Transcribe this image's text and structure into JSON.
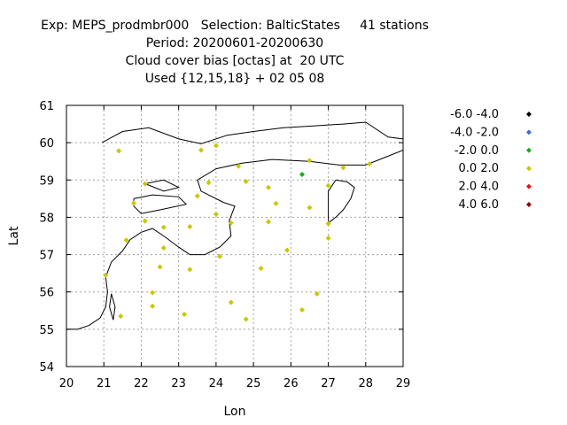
{
  "header": {
    "lines": [
      "Exp: MEPS_prodmbr000   Selection: BalticStates     41 stations",
      "Period: 20200601-20200630",
      "Cloud cover bias [octas] at  20 UTC",
      "Used {12,15,18} + 02 05 08"
    ]
  },
  "chart_data": {
    "type": "scatter",
    "xlabel": "Lon",
    "ylabel": "Lat",
    "xlim": [
      20,
      29
    ],
    "ylim": [
      54,
      61
    ],
    "xticks": [
      "20",
      "21",
      "22",
      "23",
      "24",
      "25",
      "26",
      "27",
      "28",
      "29"
    ],
    "yticks": [
      "54",
      "55",
      "56",
      "57",
      "58",
      "59",
      "60",
      "61"
    ],
    "grid": true,
    "legend_placement": "right",
    "legend": [
      {
        "label": "-6.0 -4.0",
        "color": "#000000"
      },
      {
        "label": "-4.0 -2.0",
        "color": "#3a6fd8"
      },
      {
        "label": "-2.0 0.0",
        "color": "#1aab1a"
      },
      {
        "label": "0.0 2.0",
        "color": "#c8c800"
      },
      {
        "label": "2.0 4.0",
        "color": "#ee1111"
      },
      {
        "label": "4.0 6.0",
        "color": "#8b0000"
      }
    ],
    "points": [
      {
        "lon": 21.4,
        "lat": 59.78,
        "bin": 3
      },
      {
        "lon": 23.6,
        "lat": 59.8,
        "bin": 3
      },
      {
        "lon": 24.0,
        "lat": 59.92,
        "bin": 3
      },
      {
        "lon": 24.6,
        "lat": 59.37,
        "bin": 3
      },
      {
        "lon": 26.5,
        "lat": 59.52,
        "bin": 3
      },
      {
        "lon": 27.4,
        "lat": 59.33,
        "bin": 3
      },
      {
        "lon": 28.1,
        "lat": 59.43,
        "bin": 3
      },
      {
        "lon": 26.3,
        "lat": 59.15,
        "bin": 2
      },
      {
        "lon": 22.1,
        "lat": 58.9,
        "bin": 3
      },
      {
        "lon": 23.8,
        "lat": 58.93,
        "bin": 3
      },
      {
        "lon": 24.8,
        "lat": 58.96,
        "bin": 3
      },
      {
        "lon": 25.4,
        "lat": 58.8,
        "bin": 3
      },
      {
        "lon": 27.0,
        "lat": 58.85,
        "bin": 3
      },
      {
        "lon": 21.8,
        "lat": 58.38,
        "bin": 3
      },
      {
        "lon": 23.5,
        "lat": 58.57,
        "bin": 3
      },
      {
        "lon": 25.6,
        "lat": 58.37,
        "bin": 3
      },
      {
        "lon": 26.5,
        "lat": 58.26,
        "bin": 3
      },
      {
        "lon": 22.1,
        "lat": 57.9,
        "bin": 3
      },
      {
        "lon": 24.0,
        "lat": 58.08,
        "bin": 3
      },
      {
        "lon": 24.4,
        "lat": 57.85,
        "bin": 3
      },
      {
        "lon": 25.4,
        "lat": 57.88,
        "bin": 3
      },
      {
        "lon": 27.0,
        "lat": 57.83,
        "bin": 3
      },
      {
        "lon": 21.6,
        "lat": 57.39,
        "bin": 3
      },
      {
        "lon": 22.6,
        "lat": 57.73,
        "bin": 3
      },
      {
        "lon": 23.3,
        "lat": 57.75,
        "bin": 3
      },
      {
        "lon": 27.0,
        "lat": 57.44,
        "bin": 3
      },
      {
        "lon": 22.6,
        "lat": 57.18,
        "bin": 3
      },
      {
        "lon": 24.1,
        "lat": 56.95,
        "bin": 3
      },
      {
        "lon": 25.9,
        "lat": 57.12,
        "bin": 3
      },
      {
        "lon": 22.5,
        "lat": 56.67,
        "bin": 3
      },
      {
        "lon": 23.3,
        "lat": 56.6,
        "bin": 3
      },
      {
        "lon": 25.2,
        "lat": 56.63,
        "bin": 3
      },
      {
        "lon": 21.05,
        "lat": 56.45,
        "bin": 3
      },
      {
        "lon": 22.3,
        "lat": 55.98,
        "bin": 3
      },
      {
        "lon": 26.7,
        "lat": 55.95,
        "bin": 3
      },
      {
        "lon": 22.3,
        "lat": 55.62,
        "bin": 3
      },
      {
        "lon": 24.4,
        "lat": 55.72,
        "bin": 3
      },
      {
        "lon": 26.3,
        "lat": 55.52,
        "bin": 3
      },
      {
        "lon": 21.45,
        "lat": 55.35,
        "bin": 3
      },
      {
        "lon": 23.15,
        "lat": 55.4,
        "bin": 3
      },
      {
        "lon": 24.8,
        "lat": 55.27,
        "bin": 3
      }
    ],
    "coastlines": [
      [
        [
          20.0,
          55.0
        ],
        [
          20.3,
          55.0
        ],
        [
          20.6,
          55.1
        ],
        [
          20.9,
          55.3
        ],
        [
          21.05,
          55.6
        ],
        [
          21.1,
          56.0
        ],
        [
          21.05,
          56.4
        ],
        [
          21.2,
          56.8
        ],
        [
          21.5,
          57.1
        ],
        [
          21.7,
          57.4
        ],
        [
          22.0,
          57.6
        ],
        [
          22.3,
          57.7
        ],
        [
          22.6,
          57.5
        ],
        [
          23.0,
          57.2
        ],
        [
          23.3,
          57.0
        ],
        [
          23.7,
          57.0
        ],
        [
          24.1,
          57.2
        ],
        [
          24.4,
          57.5
        ],
        [
          24.35,
          57.9
        ],
        [
          24.5,
          58.3
        ],
        [
          24.2,
          58.4
        ],
        [
          23.6,
          58.7
        ],
        [
          23.5,
          59.0
        ],
        [
          24.0,
          59.3
        ],
        [
          24.7,
          59.45
        ],
        [
          25.5,
          59.55
        ],
        [
          26.5,
          59.5
        ],
        [
          27.3,
          59.4
        ],
        [
          28.0,
          59.4
        ],
        [
          28.5,
          59.6
        ],
        [
          29.0,
          59.8
        ]
      ],
      [
        [
          27.2,
          59.0
        ],
        [
          27.5,
          58.95
        ],
        [
          27.7,
          58.8
        ],
        [
          27.6,
          58.5
        ],
        [
          27.4,
          58.2
        ],
        [
          27.2,
          58.0
        ],
        [
          27.0,
          57.85
        ],
        [
          27.0,
          58.3
        ],
        [
          27.0,
          58.7
        ],
        [
          27.2,
          59.0
        ]
      ],
      [
        [
          22.1,
          58.9
        ],
        [
          22.6,
          59.0
        ],
        [
          23.0,
          58.8
        ],
        [
          22.6,
          58.7
        ],
        [
          22.1,
          58.9
        ]
      ],
      [
        [
          21.8,
          58.5
        ],
        [
          22.3,
          58.6
        ],
        [
          23.0,
          58.55
        ],
        [
          23.2,
          58.35
        ],
        [
          22.5,
          58.2
        ],
        [
          22.0,
          58.1
        ],
        [
          21.8,
          58.3
        ],
        [
          21.8,
          58.5
        ]
      ],
      [
        [
          21.2,
          55.95
        ],
        [
          21.3,
          55.6
        ],
        [
          21.25,
          55.25
        ],
        [
          21.15,
          55.6
        ],
        [
          21.2,
          55.95
        ]
      ],
      [
        [
          20.95,
          60.0
        ],
        [
          21.5,
          60.3
        ],
        [
          22.2,
          60.4
        ],
        [
          23.0,
          60.1
        ],
        [
          23.6,
          59.97
        ],
        [
          24.3,
          60.2
        ],
        [
          25.0,
          60.3
        ],
        [
          25.8,
          60.4
        ],
        [
          26.6,
          60.45
        ],
        [
          27.4,
          60.5
        ],
        [
          28.0,
          60.55
        ],
        [
          28.6,
          60.15
        ],
        [
          29.0,
          60.1
        ]
      ]
    ]
  }
}
